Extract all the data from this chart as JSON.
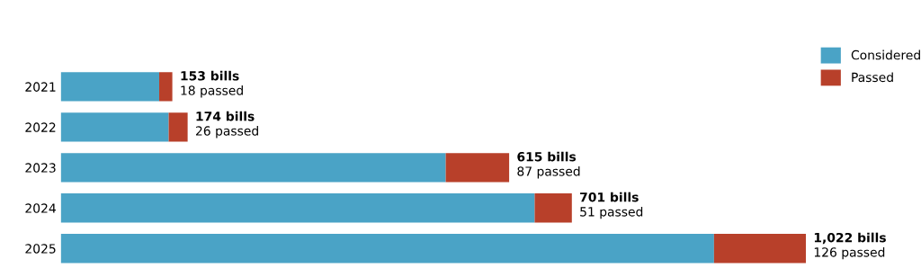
{
  "chart_data": {
    "type": "bar",
    "orientation": "horizontal",
    "stacked": true,
    "categories": [
      "2021",
      "2022",
      "2023",
      "2024",
      "2025"
    ],
    "series": [
      {
        "name": "Considered",
        "color": "#4aa3c6",
        "values": [
          135,
          148,
          528,
          650,
          896
        ]
      },
      {
        "name": "Passed",
        "color": "#b8402a",
        "values": [
          18,
          26,
          87,
          51,
          126
        ],
        "value_labels": [
          "18 passed",
          "26 passed",
          "87 passed",
          "51 passed",
          "126 passed"
        ]
      }
    ],
    "totals": [
      "153 bills",
      "174 bills",
      "615 bills",
      "701 bills",
      "1,022 bills"
    ],
    "legend": "top right",
    "grid": false,
    "tick_labels": "y"
  }
}
